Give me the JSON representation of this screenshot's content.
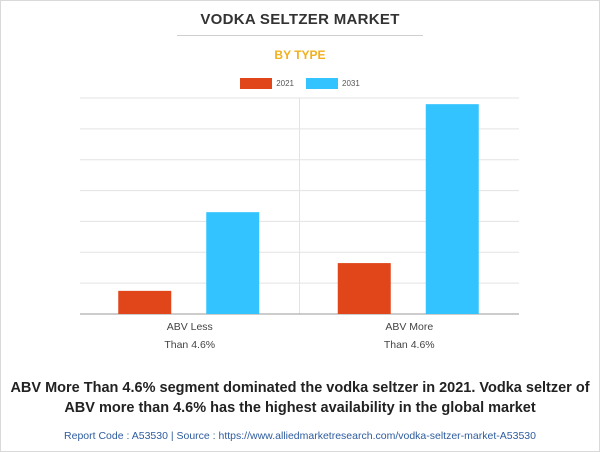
{
  "chart_data": {
    "type": "bar",
    "title": "VODKA SELTZER MARKET",
    "subtitle": "BY TYPE",
    "categories": [
      "ABV Less\nThan 4.6%",
      "ABV More\nThan 4.6%"
    ],
    "series": [
      {
        "name": "2021",
        "color": "#e0461a",
        "values": [
          0.75,
          1.65
        ]
      },
      {
        "name": "2031",
        "color": "#33c3ff",
        "values": [
          3.3,
          6.8
        ]
      }
    ],
    "ylim": [
      0,
      7
    ],
    "y_gridlines": [
      1,
      2,
      3,
      4,
      5,
      6,
      7
    ],
    "grid": true,
    "y_tick_labels_shown": false,
    "legend_position": "top-center"
  },
  "caption": "ABV More Than 4.6% segment dominated the vodka seltzer in 2021. Vodka seltzer of ABV more than 4.6% has the highest availability in the global market",
  "footer": "Report Code : A53530  |  Source : https://www.alliedmarketresearch.com/vodka-seltzer-market-A53530"
}
